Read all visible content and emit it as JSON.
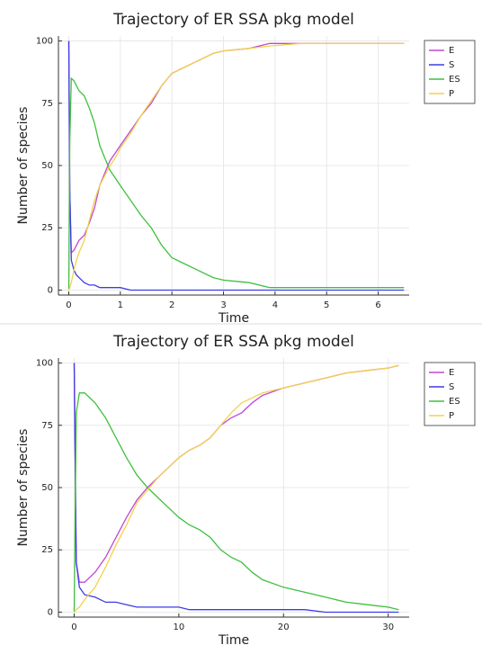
{
  "chart_data": [
    {
      "type": "line",
      "title": "Trajectory of ER SSA pkg model",
      "xlabel": "Time",
      "ylabel": "Number of species",
      "x": [
        0,
        0.02,
        0.05,
        0.1,
        0.15,
        0.2,
        0.3,
        0.4,
        0.5,
        0.6,
        0.7,
        0.8,
        0.9,
        1.0,
        1.2,
        1.4,
        1.6,
        1.8,
        2.0,
        2.2,
        2.5,
        2.8,
        3.0,
        3.5,
        3.9,
        4.5,
        5,
        5.5,
        6,
        6.5
      ],
      "series": [
        {
          "name": "E",
          "color": "#c048d4",
          "values": [
            100,
            40,
            15,
            16,
            18,
            20,
            22,
            27,
            33,
            42,
            47,
            52,
            55,
            58,
            64,
            70,
            75,
            82,
            87,
            89,
            92,
            95,
            96,
            97,
            99,
            99,
            99,
            99,
            99,
            99
          ]
        },
        {
          "name": "S",
          "color": "#3c3ce6",
          "values": [
            100,
            40,
            12,
            8,
            6,
            5,
            3,
            2,
            2,
            1,
            1,
            1,
            1,
            1,
            0,
            0,
            0,
            0,
            0,
            0,
            0,
            0,
            0,
            0,
            0,
            0,
            0,
            0,
            0,
            0
          ]
        },
        {
          "name": "ES",
          "color": "#3ec03e",
          "values": [
            0,
            60,
            85,
            84,
            82,
            80,
            78,
            73,
            67,
            58,
            53,
            48,
            45,
            42,
            36,
            30,
            25,
            18,
            13,
            11,
            8,
            5,
            4,
            3,
            1,
            1,
            1,
            1,
            1,
            1
          ]
        },
        {
          "name": "P",
          "color": "#f2d24a",
          "values": [
            0,
            1,
            3,
            8,
            12,
            15,
            20,
            28,
            36,
            42,
            46,
            50,
            53,
            57,
            63,
            70,
            76,
            82,
            87,
            89,
            92,
            95,
            96,
            97,
            98,
            99,
            99,
            99,
            99,
            99
          ]
        }
      ],
      "xlim": [
        -0.2,
        6.6
      ],
      "xticks": [
        0,
        1,
        2,
        3,
        4,
        5,
        6
      ],
      "ylim": [
        -2,
        102
      ],
      "yticks": [
        0,
        25,
        50,
        75,
        100
      ],
      "grid": true,
      "legend": "outside-top-right"
    },
    {
      "type": "line",
      "title": "Trajectory of ER SSA pkg model",
      "xlabel": "Time",
      "ylabel": "Number of species",
      "x": [
        0,
        0.2,
        0.5,
        1,
        2,
        3,
        4,
        5,
        6,
        7,
        8,
        9,
        10,
        11,
        12,
        13,
        14,
        15,
        16,
        17,
        18,
        20,
        22,
        24,
        26,
        28,
        30,
        31
      ],
      "series": [
        {
          "name": "E",
          "color": "#c048d4",
          "values": [
            100,
            20,
            12,
            12,
            16,
            22,
            30,
            38,
            45,
            50,
            54,
            58,
            62,
            65,
            67,
            70,
            75,
            78,
            80,
            84,
            87,
            90,
            92,
            94,
            96,
            97,
            98,
            99
          ]
        },
        {
          "name": "S",
          "color": "#3c3ce6",
          "values": [
            100,
            20,
            10,
            7,
            6,
            4,
            4,
            3,
            2,
            2,
            2,
            2,
            2,
            1,
            1,
            1,
            1,
            1,
            1,
            1,
            1,
            1,
            1,
            0,
            0,
            0,
            0,
            0
          ]
        },
        {
          "name": "ES",
          "color": "#3ec03e",
          "values": [
            0,
            80,
            88,
            88,
            84,
            78,
            70,
            62,
            55,
            50,
            46,
            42,
            38,
            35,
            33,
            30,
            25,
            22,
            20,
            16,
            13,
            10,
            8,
            6,
            4,
            3,
            2,
            1
          ]
        },
        {
          "name": "P",
          "color": "#f2d24a",
          "values": [
            0,
            1,
            2,
            5,
            10,
            18,
            27,
            35,
            44,
            49,
            54,
            58,
            62,
            65,
            67,
            70,
            75,
            80,
            84,
            86,
            88,
            90,
            92,
            94,
            96,
            97,
            98,
            99
          ]
        }
      ],
      "xlim": [
        -1.5,
        32
      ],
      "xticks": [
        0,
        10,
        20,
        30
      ],
      "ylim": [
        -2,
        102
      ],
      "yticks": [
        0,
        25,
        50,
        75,
        100
      ],
      "grid": true,
      "legend": "outside-top-right"
    }
  ]
}
